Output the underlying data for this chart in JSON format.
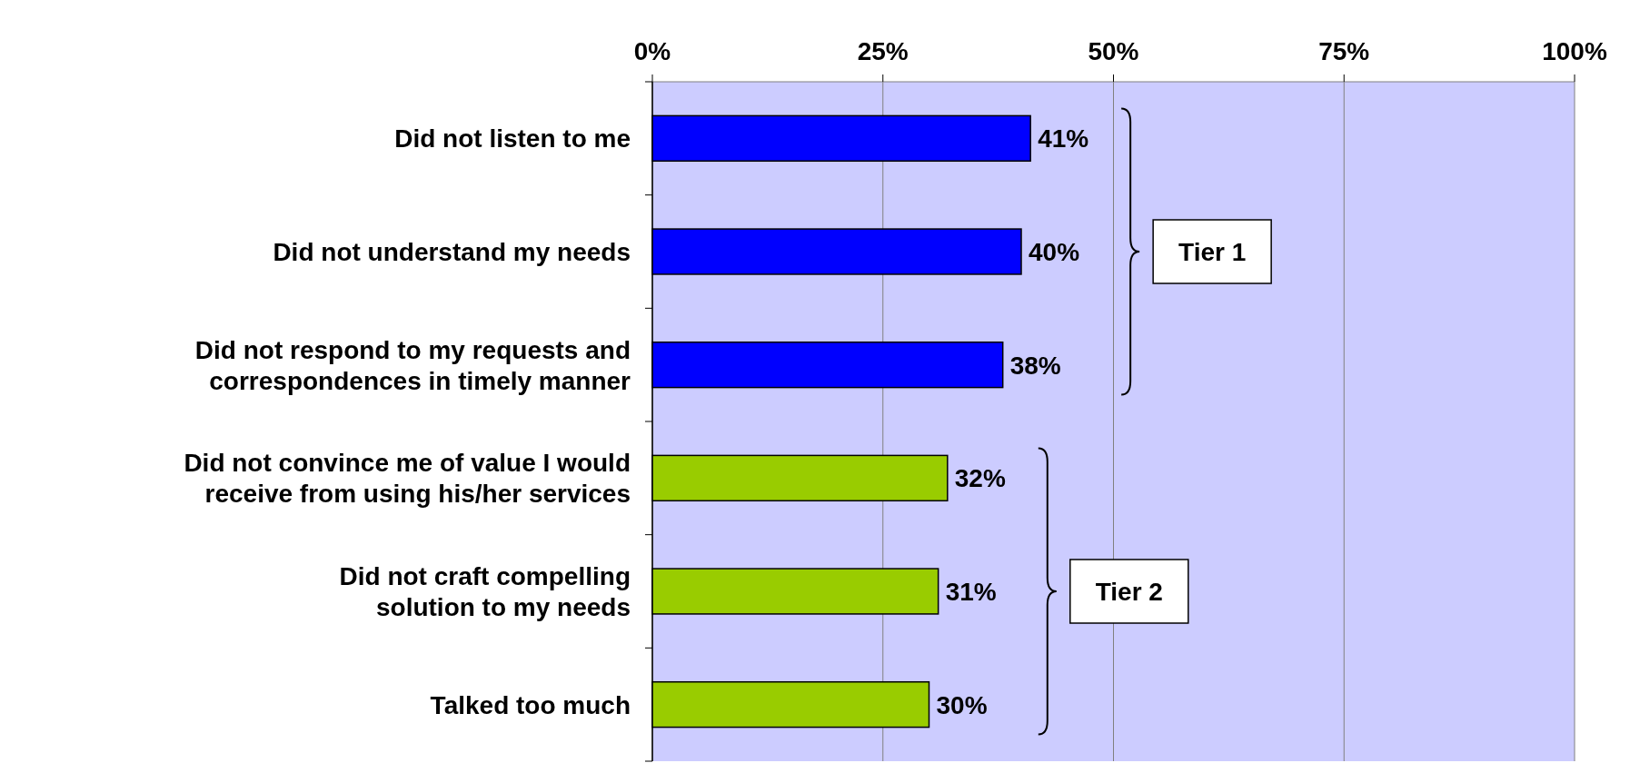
{
  "chart_data": {
    "type": "bar",
    "orientation": "horizontal",
    "categories": [
      "Did not listen to me",
      "Did not understand my needs",
      "Did not respond to my requests and correspondences in timely manner",
      "Did not convince me of value I would receive from using his/her services",
      "Did not craft compelling solution to my needs",
      "Talked too much"
    ],
    "values": [
      41,
      40,
      38,
      32,
      31,
      30
    ],
    "colors": [
      "#0000ff",
      "#0000ff",
      "#0000ff",
      "#99cc00",
      "#99cc00",
      "#99cc00"
    ],
    "value_labels": [
      "41%",
      "40%",
      "38%",
      "32%",
      "31%",
      "30%"
    ],
    "xlim": [
      0,
      100
    ],
    "xticks": [
      {
        "value": 0,
        "label": "0%"
      },
      {
        "value": 25,
        "label": "25%"
      },
      {
        "value": 50,
        "label": "50%"
      },
      {
        "value": 75,
        "label": "75%"
      },
      {
        "value": 100,
        "label": "100%"
      }
    ],
    "grid": "x",
    "annotations": [
      "Tier 1",
      "Tier 2"
    ]
  }
}
